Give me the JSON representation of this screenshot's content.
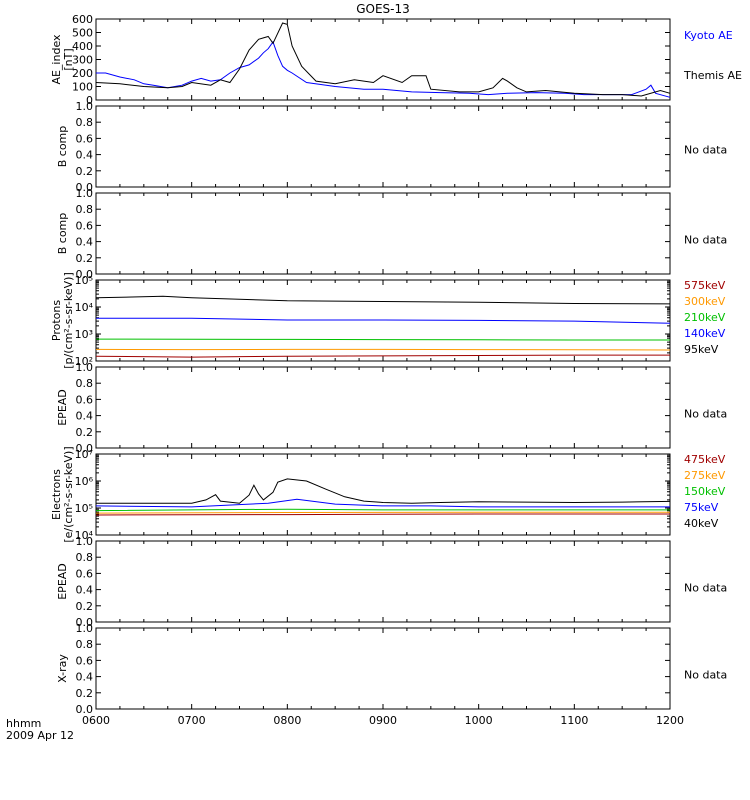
{
  "title": "GOES-13",
  "footer": {
    "line1": "hhmm",
    "line2": "2009 Apr 12"
  },
  "x_axis": {
    "ticks": [
      "0600",
      "0700",
      "0800",
      "0900",
      "1000",
      "1100",
      "1200"
    ],
    "range_hours": [
      6,
      12
    ]
  },
  "chart_data": [
    {
      "type": "line",
      "ylabel": [
        "AE_index",
        "[nT]"
      ],
      "ylim": [
        0,
        600
      ],
      "yticks": [
        "0",
        "100",
        "200",
        "300",
        "400",
        "500",
        "600"
      ],
      "x_unit": "hour UT",
      "series": [
        {
          "name": "Kyoto AE",
          "color": "#0000ff",
          "points": [
            [
              6.0,
              200
            ],
            [
              6.1,
              200
            ],
            [
              6.25,
              170
            ],
            [
              6.4,
              150
            ],
            [
              6.5,
              120
            ],
            [
              6.6,
              110
            ],
            [
              6.75,
              90
            ],
            [
              6.9,
              110
            ],
            [
              7.0,
              140
            ],
            [
              7.1,
              160
            ],
            [
              7.2,
              140
            ],
            [
              7.3,
              150
            ],
            [
              7.4,
              200
            ],
            [
              7.5,
              240
            ],
            [
              7.6,
              260
            ],
            [
              7.7,
              310
            ],
            [
              7.75,
              350
            ],
            [
              7.8,
              380
            ],
            [
              7.85,
              430
            ],
            [
              7.9,
              330
            ],
            [
              7.95,
              250
            ],
            [
              8.0,
              220
            ],
            [
              8.05,
              200
            ],
            [
              8.2,
              130
            ],
            [
              8.5,
              100
            ],
            [
              8.8,
              80
            ],
            [
              9.0,
              80
            ],
            [
              9.3,
              60
            ],
            [
              9.6,
              55
            ],
            [
              9.9,
              50
            ],
            [
              10.1,
              40
            ],
            [
              10.3,
              50
            ],
            [
              10.6,
              55
            ],
            [
              10.9,
              50
            ],
            [
              11.1,
              40
            ],
            [
              11.3,
              40
            ],
            [
              11.6,
              40
            ],
            [
              11.75,
              80
            ],
            [
              11.8,
              110
            ],
            [
              11.85,
              50
            ],
            [
              12.0,
              20
            ]
          ]
        },
        {
          "name": "Themis AE",
          "color": "#000000",
          "points": [
            [
              6.0,
              130
            ],
            [
              6.25,
              120
            ],
            [
              6.5,
              100
            ],
            [
              6.75,
              90
            ],
            [
              6.9,
              100
            ],
            [
              7.0,
              130
            ],
            [
              7.2,
              110
            ],
            [
              7.3,
              150
            ],
            [
              7.4,
              130
            ],
            [
              7.5,
              230
            ],
            [
              7.6,
              370
            ],
            [
              7.7,
              450
            ],
            [
              7.75,
              460
            ],
            [
              7.8,
              470
            ],
            [
              7.85,
              420
            ],
            [
              7.95,
              570
            ],
            [
              8.0,
              560
            ],
            [
              8.05,
              400
            ],
            [
              8.15,
              250
            ],
            [
              8.3,
              140
            ],
            [
              8.5,
              120
            ],
            [
              8.7,
              150
            ],
            [
              8.9,
              130
            ],
            [
              9.0,
              180
            ],
            [
              9.2,
              130
            ],
            [
              9.3,
              180
            ],
            [
              9.45,
              180
            ],
            [
              9.5,
              80
            ],
            [
              9.8,
              60
            ],
            [
              10.0,
              60
            ],
            [
              10.15,
              90
            ],
            [
              10.25,
              160
            ],
            [
              10.3,
              140
            ],
            [
              10.4,
              90
            ],
            [
              10.5,
              60
            ],
            [
              10.7,
              70
            ],
            [
              11.0,
              50
            ],
            [
              11.3,
              40
            ],
            [
              11.5,
              40
            ],
            [
              11.7,
              30
            ],
            [
              11.9,
              70
            ],
            [
              12.0,
              50
            ]
          ]
        }
      ]
    },
    {
      "type": "line",
      "ylabel": [
        "B comp"
      ],
      "ylim": [
        0,
        1
      ],
      "yticks": [
        "0.0",
        "0.2",
        "0.4",
        "0.6",
        "0.8",
        "1.0"
      ],
      "annotation": "No data",
      "series": []
    },
    {
      "type": "line",
      "ylabel": [
        "B comp"
      ],
      "ylim": [
        0,
        1
      ],
      "yticks": [
        "0.0",
        "0.2",
        "0.4",
        "0.6",
        "0.8",
        "1.0"
      ],
      "annotation": "No data",
      "series": []
    },
    {
      "type": "line",
      "ylabel": [
        "Protons",
        "[p/(cm²-s-sr-keV)]"
      ],
      "log_scale": true,
      "ylim": [
        100,
        100000
      ],
      "yticks": [
        "10²",
        "10³",
        "10⁴",
        "10⁵"
      ],
      "x_unit": "hour UT",
      "series": [
        {
          "name": "575keV",
          "color": "#a00000",
          "points": [
            [
              6,
              150
            ],
            [
              7,
              140
            ],
            [
              8,
              150
            ],
            [
              9,
              155
            ],
            [
              10,
              160
            ],
            [
              11,
              165
            ],
            [
              12,
              165
            ]
          ]
        },
        {
          "name": "300keV",
          "color": "#ff9900",
          "points": [
            [
              6,
              270
            ],
            [
              7,
              265
            ],
            [
              8,
              270
            ],
            [
              9,
              270
            ],
            [
              10,
              265
            ],
            [
              11,
              260
            ],
            [
              12,
              255
            ]
          ]
        },
        {
          "name": "210keV",
          "color": "#00c000",
          "points": [
            [
              6,
              650
            ],
            [
              7,
              640
            ],
            [
              8,
              630
            ],
            [
              9,
              620
            ],
            [
              10,
              610
            ],
            [
              11,
              600
            ],
            [
              12,
              600
            ]
          ]
        },
        {
          "name": "140keV",
          "color": "#0000ff",
          "points": [
            [
              6,
              3800
            ],
            [
              7,
              3800
            ],
            [
              8,
              3300
            ],
            [
              9,
              3300
            ],
            [
              10,
              3200
            ],
            [
              11,
              3000
            ],
            [
              12,
              2500
            ]
          ]
        },
        {
          "name": "95keV",
          "color": "#000000",
          "points": [
            [
              6,
              22000
            ],
            [
              6.7,
              25000
            ],
            [
              7,
              22000
            ],
            [
              8,
              17000
            ],
            [
              9,
              16000
            ],
            [
              10,
              15000
            ],
            [
              11,
              13500
            ],
            [
              12,
              13000
            ]
          ]
        }
      ]
    },
    {
      "type": "line",
      "ylabel": [
        "EPEAD"
      ],
      "ylim": [
        0,
        1
      ],
      "yticks": [
        "0.0",
        "0.2",
        "0.4",
        "0.6",
        "0.8",
        "1.0"
      ],
      "annotation": "No data",
      "series": []
    },
    {
      "type": "line",
      "ylabel": [
        "Electrons",
        "[e/(cm²-s-sr-keV)]"
      ],
      "log_scale": true,
      "ylim": [
        10000,
        10000000
      ],
      "yticks": [
        "10⁴",
        "10⁵",
        "10⁶",
        "10⁷"
      ],
      "x_unit": "hour UT",
      "series": [
        {
          "name": "475keV",
          "color": "#a00000",
          "points": [
            [
              6,
              55000
            ],
            [
              8,
              57000
            ],
            [
              10,
              60000
            ],
            [
              12,
              60000
            ]
          ]
        },
        {
          "name": "275keV",
          "color": "#ff9900",
          "points": [
            [
              6,
              65000
            ],
            [
              8,
              68000
            ],
            [
              10,
              70000
            ],
            [
              12,
              70000
            ]
          ]
        },
        {
          "name": "150keV",
          "color": "#00c000",
          "points": [
            [
              6,
              80000
            ],
            [
              8,
              90000
            ],
            [
              9,
              85000
            ],
            [
              10,
              85000
            ],
            [
              12,
              85000
            ]
          ]
        },
        {
          "name": "75keV",
          "color": "#0000ff",
          "points": [
            [
              6,
              120000
            ],
            [
              7,
              110000
            ],
            [
              7.8,
              150000
            ],
            [
              8.1,
              210000
            ],
            [
              8.5,
              140000
            ],
            [
              9,
              120000
            ],
            [
              9.5,
              120000
            ],
            [
              10,
              110000
            ],
            [
              11,
              110000
            ],
            [
              12,
              110000
            ]
          ]
        },
        {
          "name": "40keV",
          "color": "#000000",
          "points": [
            [
              6,
              150000
            ],
            [
              7,
              150000
            ],
            [
              7.15,
              200000
            ],
            [
              7.25,
              310000
            ],
            [
              7.3,
              180000
            ],
            [
              7.5,
              150000
            ],
            [
              7.6,
              300000
            ],
            [
              7.65,
              700000
            ],
            [
              7.7,
              330000
            ],
            [
              7.75,
              200000
            ],
            [
              7.85,
              380000
            ],
            [
              7.9,
              900000
            ],
            [
              8.0,
              1200000
            ],
            [
              8.2,
              1000000
            ],
            [
              8.4,
              500000
            ],
            [
              8.6,
              260000
            ],
            [
              8.8,
              180000
            ],
            [
              9.0,
              160000
            ],
            [
              9.3,
              150000
            ],
            [
              9.6,
              160000
            ],
            [
              10.0,
              170000
            ],
            [
              10.5,
              165000
            ],
            [
              11.0,
              160000
            ],
            [
              11.5,
              165000
            ],
            [
              12.0,
              175000
            ]
          ]
        }
      ]
    },
    {
      "type": "line",
      "ylabel": [
        "EPEAD"
      ],
      "ylim": [
        0,
        1
      ],
      "yticks": [
        "0.0",
        "0.2",
        "0.4",
        "0.6",
        "0.8",
        "1.0"
      ],
      "annotation": "No data",
      "series": []
    },
    {
      "type": "line",
      "ylabel": [
        "X-ray"
      ],
      "ylim": [
        0,
        1
      ],
      "yticks": [
        "0.0",
        "0.2",
        "0.4",
        "0.6",
        "0.8",
        "1.0"
      ],
      "annotation": "No data",
      "series": []
    }
  ]
}
